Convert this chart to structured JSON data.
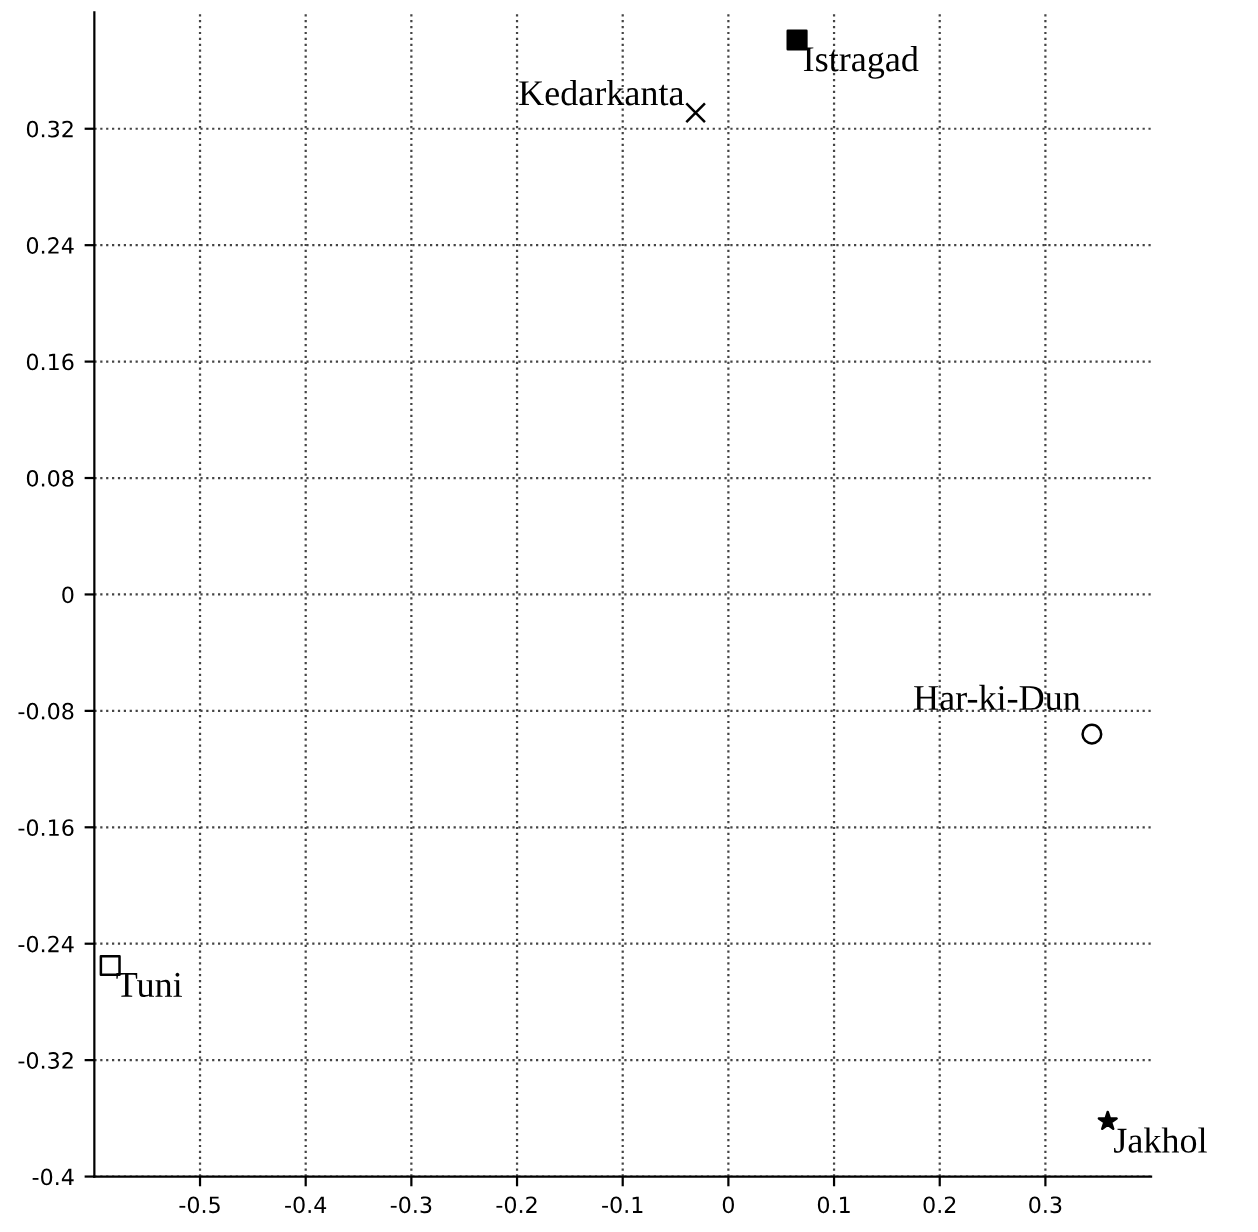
{
  "chart_data": {
    "type": "scatter",
    "xlim": [
      -0.6,
      0.4
    ],
    "ylim": [
      -0.4,
      0.4
    ],
    "xticks": [
      -0.5,
      -0.4,
      -0.3,
      -0.2,
      -0.1,
      0,
      0.1,
      0.2,
      0.3
    ],
    "yticks": [
      -0.4,
      -0.32,
      -0.24,
      -0.16,
      -0.08,
      0,
      0.08,
      0.16,
      0.24,
      0.32
    ],
    "grid": true,
    "series": [
      {
        "name": "Istragad",
        "color": "#000000",
        "marker": "square",
        "x": [
          0.065
        ],
        "values": [
          0.381
        ]
      },
      {
        "name": "Kedarkanta",
        "color": "#000000",
        "marker": "cross",
        "x": [
          -0.031
        ],
        "values": [
          0.331
        ]
      },
      {
        "name": "Har-ki-Dun",
        "color": "#000000",
        "marker": "circle",
        "x": [
          0.344
        ],
        "values": [
          -0.096
        ]
      },
      {
        "name": "Tuni",
        "color": "#000000",
        "marker": "square",
        "x": [
          -0.585
        ],
        "values": [
          -0.255
        ]
      },
      {
        "name": "Jakhol",
        "color": "#000000",
        "marker": "star",
        "x": [
          0.359
        ],
        "values": [
          -0.362
        ]
      }
    ]
  }
}
